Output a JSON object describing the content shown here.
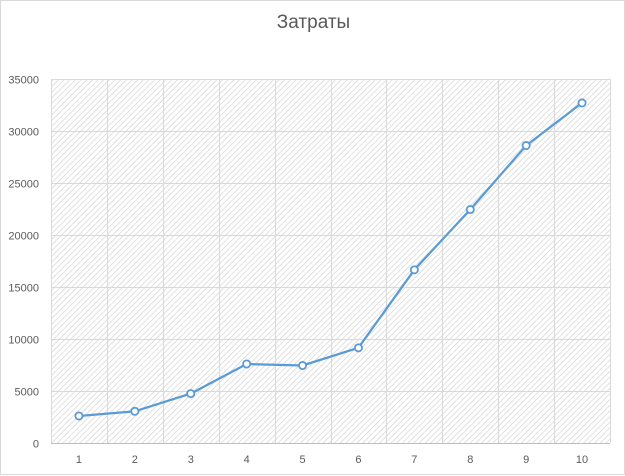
{
  "chart_data": {
    "type": "line",
    "title": "Затраты",
    "xlabel": "",
    "ylabel": "",
    "x": [
      "1",
      "2",
      "3",
      "4",
      "5",
      "6",
      "7",
      "8",
      "9",
      "10"
    ],
    "series": [
      {
        "values": [
          2600,
          3050,
          4750,
          7600,
          7450,
          9150,
          16650,
          22450,
          28600,
          32700
        ]
      }
    ],
    "ylim": [
      0,
      35000
    ],
    "yticks": [
      "0",
      "5000",
      "10000",
      "15000",
      "20000",
      "25000",
      "30000",
      "35000"
    ],
    "grid": true,
    "legend": "none",
    "line_color": "#5b9bd5",
    "background_pattern": "diagonal-hatch"
  }
}
